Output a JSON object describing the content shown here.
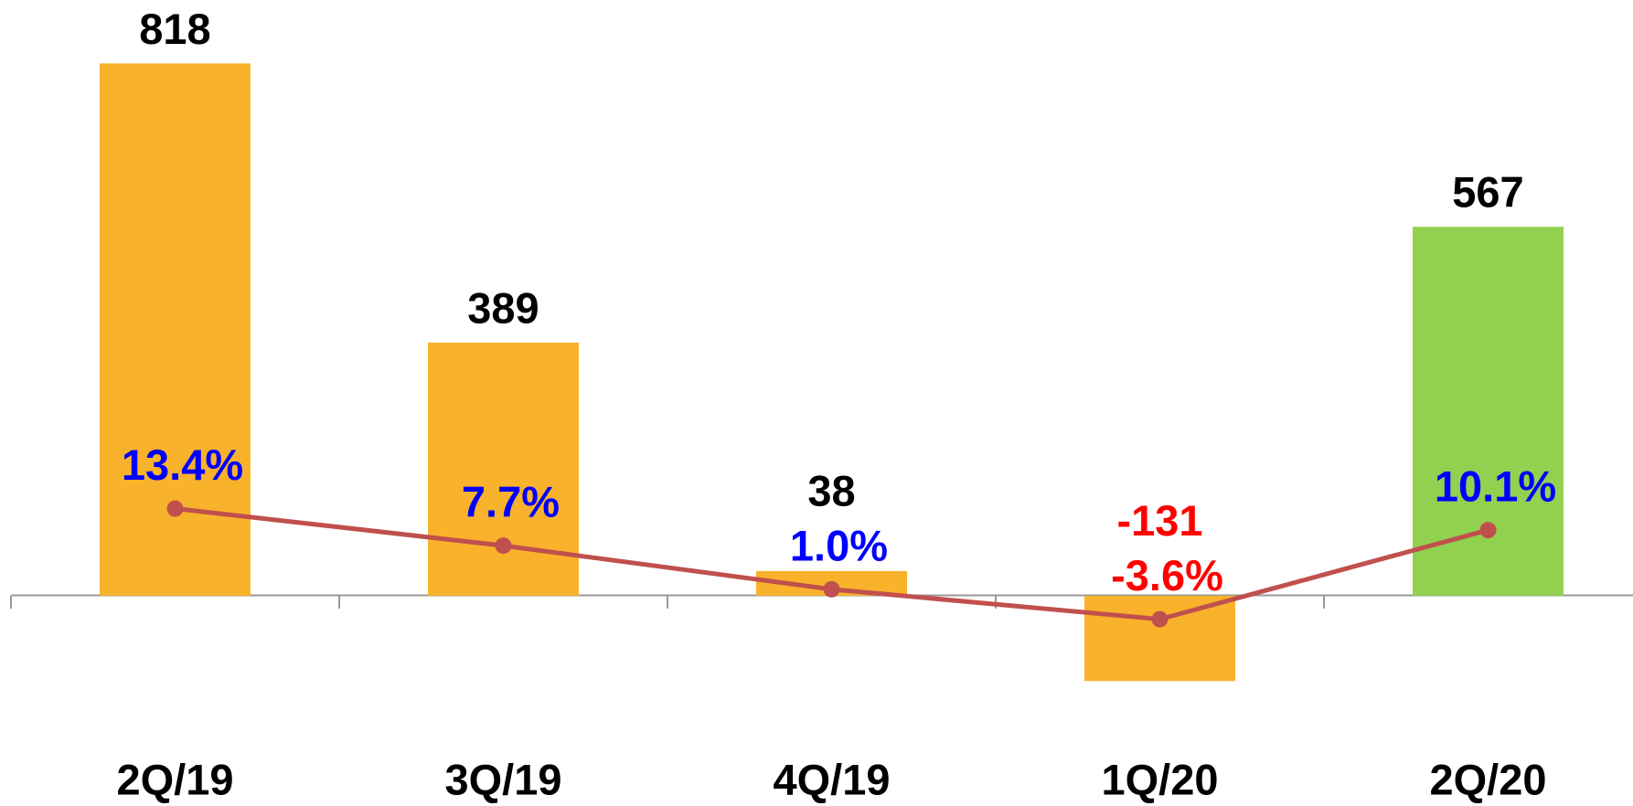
{
  "chart_data": {
    "type": "bar",
    "categories": [
      "2Q/19",
      "3Q/19",
      "4Q/19",
      "1Q/20",
      "2Q/20"
    ],
    "ylim": [
      -250,
      900
    ],
    "y2lim": [
      -25,
      90
    ],
    "series": [
      {
        "type": "bar",
        "values": [
          818,
          389,
          38,
          -131,
          567
        ],
        "colors": [
          "#F9B22B",
          "#F9B22B",
          "#F9B22B",
          "#F9B22B",
          "#92D050"
        ],
        "label_colors": [
          "#000000",
          "#000000",
          "#000000",
          "#FF0000",
          "#000000"
        ]
      },
      {
        "type": "line",
        "axis": "y2",
        "color": "#C0504D",
        "values": [
          13.4,
          7.7,
          1.0,
          -3.6,
          10.1
        ],
        "value_labels": [
          "13.4%",
          "7.7%",
          "1.0%",
          "-3.6%",
          "10.1%"
        ],
        "label_colors": [
          "#0000FF",
          "#0000FF",
          "#0000FF",
          "#FF0000",
          "#0000FF"
        ]
      }
    ]
  }
}
